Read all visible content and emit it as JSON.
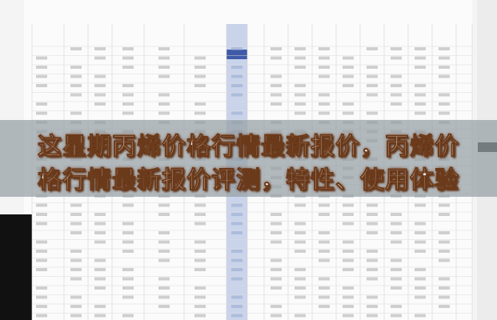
{
  "headline": {
    "lines": [
      "这星期丙烯价格行情最新报价，丙烯价",
      "格行情最新报价评测，特性、使用体验"
    ]
  }
}
